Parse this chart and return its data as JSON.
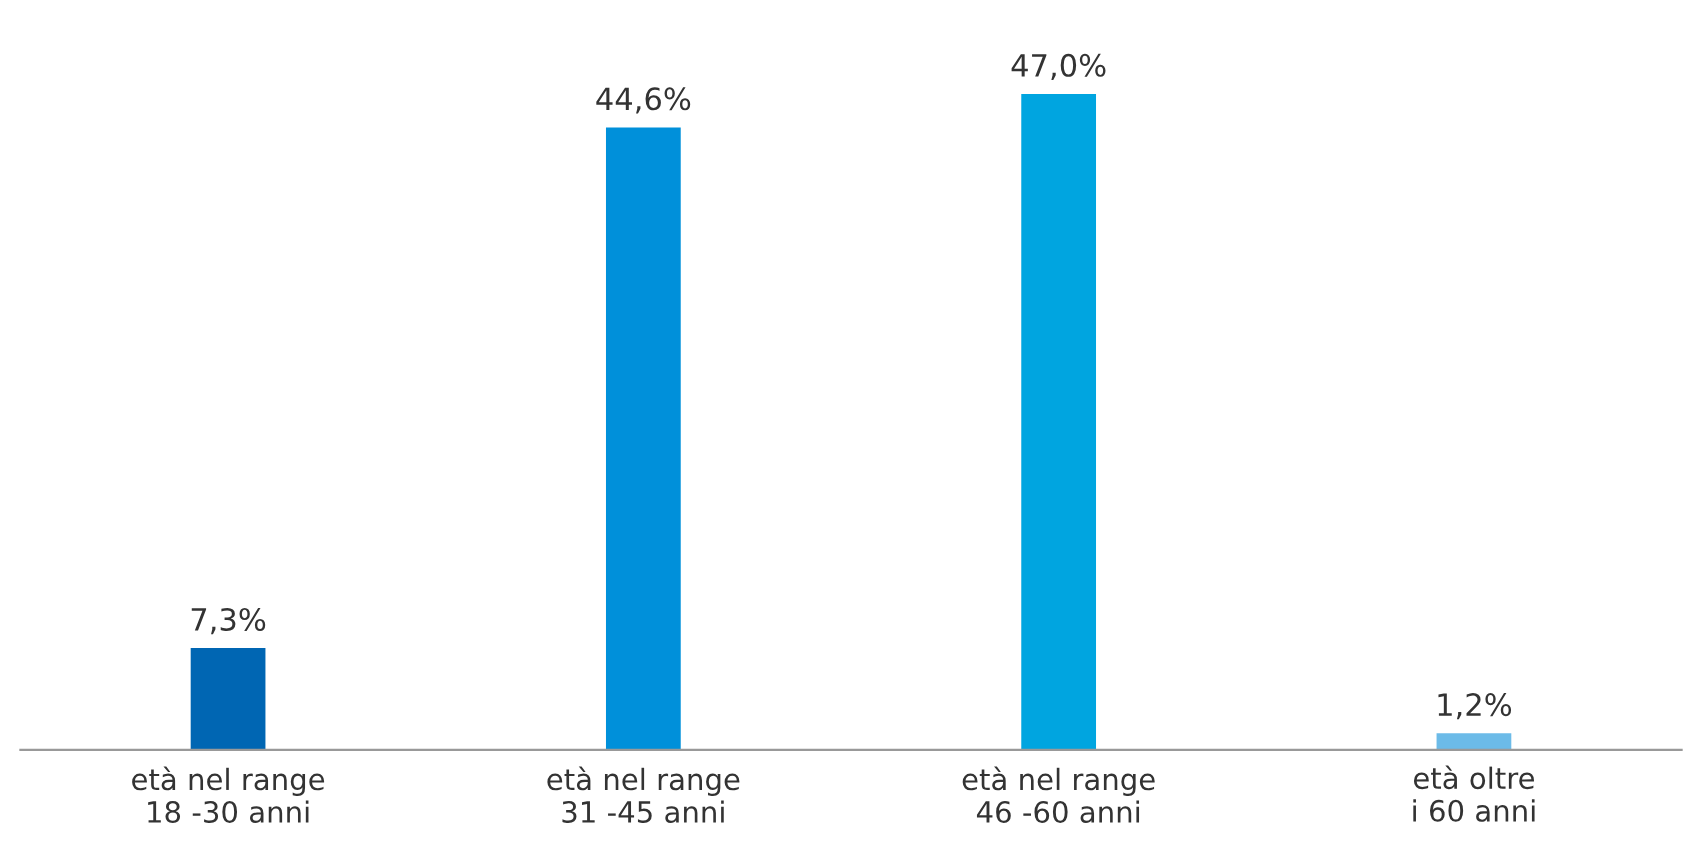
{
  "chart_data": {
    "type": "bar",
    "categories": [
      "età nel range\n18 -30 anni",
      "età nel range\n31 -45 anni",
      "età nel range\n46 -60 anni",
      "età oltre\ni 60 anni"
    ],
    "values": [
      7.3,
      44.6,
      47.0,
      1.2
    ],
    "colors": [
      "#0066b3",
      "#0090da",
      "#00a5e0",
      "#6cbbe8"
    ],
    "value_labels": [
      "7,3%",
      "44,6%",
      "47,0%",
      "1,2%"
    ],
    "grid": false,
    "legend": false
  }
}
